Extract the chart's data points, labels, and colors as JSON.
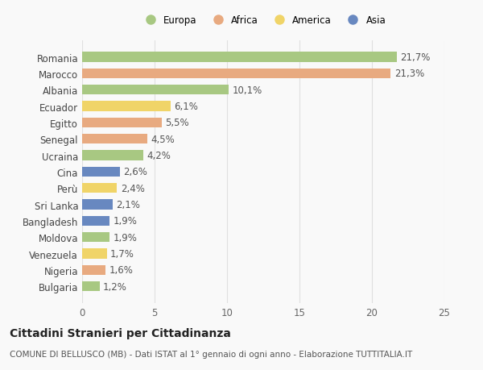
{
  "countries": [
    "Romania",
    "Marocco",
    "Albania",
    "Ecuador",
    "Egitto",
    "Senegal",
    "Ucraina",
    "Cina",
    "Perù",
    "Sri Lanka",
    "Bangladesh",
    "Moldova",
    "Venezuela",
    "Nigeria",
    "Bulgaria"
  ],
  "values": [
    21.7,
    21.3,
    10.1,
    6.1,
    5.5,
    4.5,
    4.2,
    2.6,
    2.4,
    2.1,
    1.9,
    1.9,
    1.7,
    1.6,
    1.2
  ],
  "labels": [
    "21,7%",
    "21,3%",
    "10,1%",
    "6,1%",
    "5,5%",
    "4,5%",
    "4,2%",
    "2,6%",
    "2,4%",
    "2,1%",
    "1,9%",
    "1,9%",
    "1,7%",
    "1,6%",
    "1,2%"
  ],
  "continents": [
    "Europa",
    "Africa",
    "Europa",
    "America",
    "Africa",
    "Africa",
    "Europa",
    "Asia",
    "America",
    "Asia",
    "Asia",
    "Europa",
    "America",
    "Africa",
    "Europa"
  ],
  "colors": {
    "Europa": "#a8c882",
    "Africa": "#e8aa80",
    "America": "#f0d468",
    "Asia": "#6888c0"
  },
  "xlim": [
    0,
    25
  ],
  "xticks": [
    0,
    5,
    10,
    15,
    20,
    25
  ],
  "title": "Cittadini Stranieri per Cittadinanza",
  "subtitle": "COMUNE DI BELLUSCO (MB) - Dati ISTAT al 1° gennaio di ogni anno - Elaborazione TUTTITALIA.IT",
  "background_color": "#f9f9f9",
  "grid_color": "#e0e0e0",
  "bar_height": 0.6,
  "label_fontsize": 8.5,
  "tick_fontsize": 8.5,
  "title_fontsize": 10,
  "subtitle_fontsize": 7.5,
  "legend_order": [
    "Europa",
    "Africa",
    "America",
    "Asia"
  ]
}
